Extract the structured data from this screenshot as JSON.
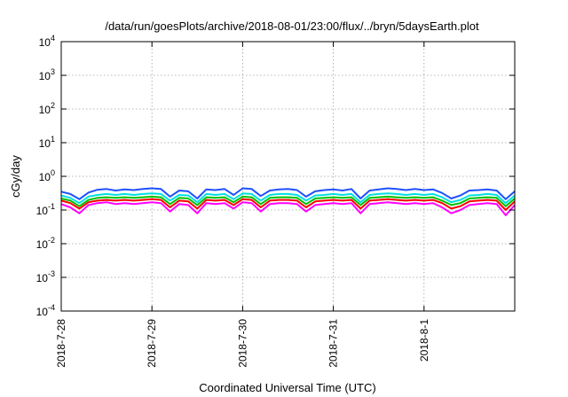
{
  "chart_data": {
    "type": "line",
    "title": "/data/run/goesPlots/archive/2018-08-01/23:00/flux/../bryn/5daysEarth.plot",
    "xlabel": "Coordinated Universal Time (UTC)",
    "ylabel": "cGy/day",
    "yscale": "log",
    "ylim": [
      0.0001,
      10000
    ],
    "xlim": [
      0,
      5
    ],
    "grid": true,
    "x_tick_labels": [
      "2018-7-28",
      "2018-7-29",
      "2018-7-30",
      "2018-7-31",
      "2018-8-1"
    ],
    "y_tick_labels": [
      {
        "base": "10",
        "exp": "-4"
      },
      {
        "base": "10",
        "exp": "-3"
      },
      {
        "base": "10",
        "exp": "-2"
      },
      {
        "base": "10",
        "exp": "-1"
      },
      {
        "base": "10",
        "exp": "0"
      },
      {
        "base": "10",
        "exp": "1"
      },
      {
        "base": "10",
        "exp": "2"
      },
      {
        "base": "10",
        "exp": "3"
      },
      {
        "base": "10",
        "exp": "4"
      }
    ],
    "x_unit_note": "days since 2018-7-28 00:00 UTC",
    "series": [
      {
        "color": "#ff00ff",
        "x": [
          0.0,
          0.1,
          0.2,
          0.3,
          0.4,
          0.5,
          0.6,
          0.7,
          0.8,
          0.9,
          1.0,
          1.1,
          1.2,
          1.3,
          1.4,
          1.5,
          1.6,
          1.7,
          1.8,
          1.9,
          2.0,
          2.1,
          2.2,
          2.3,
          2.4,
          2.5,
          2.6,
          2.7,
          2.8,
          2.9,
          3.0,
          3.1,
          3.2,
          3.3,
          3.4,
          3.5,
          3.6,
          3.7,
          3.8,
          3.9,
          4.0,
          4.1,
          4.2,
          4.3,
          4.4,
          4.5,
          4.6,
          4.7,
          4.8,
          4.9,
          5.0
        ],
        "values": [
          0.15,
          0.12,
          0.08,
          0.14,
          0.16,
          0.17,
          0.15,
          0.16,
          0.15,
          0.16,
          0.17,
          0.16,
          0.09,
          0.15,
          0.14,
          0.08,
          0.16,
          0.15,
          0.16,
          0.11,
          0.17,
          0.16,
          0.09,
          0.15,
          0.16,
          0.16,
          0.15,
          0.09,
          0.14,
          0.15,
          0.16,
          0.15,
          0.16,
          0.08,
          0.15,
          0.16,
          0.17,
          0.16,
          0.15,
          0.16,
          0.15,
          0.16,
          0.12,
          0.08,
          0.1,
          0.14,
          0.15,
          0.16,
          0.15,
          0.07,
          0.14
        ]
      },
      {
        "color": "#ff0000",
        "x": [
          0.0,
          0.1,
          0.2,
          0.3,
          0.4,
          0.5,
          0.6,
          0.7,
          0.8,
          0.9,
          1.0,
          1.1,
          1.2,
          1.3,
          1.4,
          1.5,
          1.6,
          1.7,
          1.8,
          1.9,
          2.0,
          2.1,
          2.2,
          2.3,
          2.4,
          2.5,
          2.6,
          2.7,
          2.8,
          2.9,
          3.0,
          3.1,
          3.2,
          3.3,
          3.4,
          3.5,
          3.6,
          3.7,
          3.8,
          3.9,
          4.0,
          4.1,
          4.2,
          4.3,
          4.4,
          4.5,
          4.6,
          4.7,
          4.8,
          4.9,
          5.0
        ],
        "values": [
          0.19,
          0.16,
          0.11,
          0.17,
          0.19,
          0.2,
          0.19,
          0.2,
          0.19,
          0.2,
          0.21,
          0.2,
          0.12,
          0.19,
          0.18,
          0.11,
          0.2,
          0.19,
          0.2,
          0.14,
          0.21,
          0.2,
          0.12,
          0.19,
          0.2,
          0.2,
          0.19,
          0.12,
          0.18,
          0.19,
          0.2,
          0.19,
          0.2,
          0.11,
          0.19,
          0.2,
          0.21,
          0.2,
          0.19,
          0.2,
          0.19,
          0.2,
          0.16,
          0.11,
          0.13,
          0.18,
          0.19,
          0.2,
          0.19,
          0.1,
          0.18
        ]
      },
      {
        "color": "#00c000",
        "x": [
          0.0,
          0.1,
          0.2,
          0.3,
          0.4,
          0.5,
          0.6,
          0.7,
          0.8,
          0.9,
          1.0,
          1.1,
          1.2,
          1.3,
          1.4,
          1.5,
          1.6,
          1.7,
          1.8,
          1.9,
          2.0,
          2.1,
          2.2,
          2.3,
          2.4,
          2.5,
          2.6,
          2.7,
          2.8,
          2.9,
          3.0,
          3.1,
          3.2,
          3.3,
          3.4,
          3.5,
          3.6,
          3.7,
          3.8,
          3.9,
          4.0,
          4.1,
          4.2,
          4.3,
          4.4,
          4.5,
          4.6,
          4.7,
          4.8,
          4.9,
          5.0
        ],
        "values": [
          0.22,
          0.19,
          0.13,
          0.2,
          0.23,
          0.24,
          0.23,
          0.24,
          0.23,
          0.24,
          0.25,
          0.24,
          0.15,
          0.23,
          0.22,
          0.14,
          0.24,
          0.23,
          0.24,
          0.17,
          0.25,
          0.24,
          0.15,
          0.23,
          0.24,
          0.24,
          0.23,
          0.15,
          0.22,
          0.23,
          0.24,
          0.23,
          0.24,
          0.14,
          0.23,
          0.24,
          0.25,
          0.24,
          0.23,
          0.24,
          0.23,
          0.24,
          0.19,
          0.14,
          0.16,
          0.22,
          0.23,
          0.24,
          0.23,
          0.13,
          0.22
        ]
      },
      {
        "color": "#00e0e0",
        "x": [
          0.0,
          0.1,
          0.2,
          0.3,
          0.4,
          0.5,
          0.6,
          0.7,
          0.8,
          0.9,
          1.0,
          1.1,
          1.2,
          1.3,
          1.4,
          1.5,
          1.6,
          1.7,
          1.8,
          1.9,
          2.0,
          2.1,
          2.2,
          2.3,
          2.4,
          2.5,
          2.6,
          2.7,
          2.8,
          2.9,
          3.0,
          3.1,
          3.2,
          3.3,
          3.4,
          3.5,
          3.6,
          3.7,
          3.8,
          3.9,
          4.0,
          4.1,
          4.2,
          4.3,
          4.4,
          4.5,
          4.6,
          4.7,
          4.8,
          4.9,
          5.0
        ],
        "values": [
          0.27,
          0.23,
          0.16,
          0.25,
          0.28,
          0.3,
          0.28,
          0.3,
          0.28,
          0.3,
          0.31,
          0.3,
          0.19,
          0.28,
          0.27,
          0.17,
          0.3,
          0.28,
          0.3,
          0.21,
          0.31,
          0.3,
          0.19,
          0.28,
          0.3,
          0.3,
          0.28,
          0.19,
          0.27,
          0.28,
          0.3,
          0.28,
          0.3,
          0.17,
          0.28,
          0.3,
          0.31,
          0.3,
          0.28,
          0.3,
          0.28,
          0.3,
          0.24,
          0.17,
          0.2,
          0.27,
          0.28,
          0.3,
          0.28,
          0.16,
          0.27
        ]
      },
      {
        "color": "#1e50ff",
        "x": [
          0.0,
          0.1,
          0.2,
          0.3,
          0.4,
          0.5,
          0.6,
          0.7,
          0.8,
          0.9,
          1.0,
          1.1,
          1.2,
          1.3,
          1.4,
          1.5,
          1.6,
          1.7,
          1.8,
          1.9,
          2.0,
          2.1,
          2.2,
          2.3,
          2.4,
          2.5,
          2.6,
          2.7,
          2.8,
          2.9,
          3.0,
          3.1,
          3.2,
          3.3,
          3.4,
          3.5,
          3.6,
          3.7,
          3.8,
          3.9,
          4.0,
          4.1,
          4.2,
          4.3,
          4.4,
          4.5,
          4.6,
          4.7,
          4.8,
          4.9,
          5.0
        ],
        "values": [
          0.35,
          0.3,
          0.21,
          0.33,
          0.4,
          0.42,
          0.38,
          0.41,
          0.39,
          0.42,
          0.44,
          0.42,
          0.25,
          0.38,
          0.36,
          0.22,
          0.41,
          0.39,
          0.42,
          0.28,
          0.44,
          0.42,
          0.26,
          0.38,
          0.41,
          0.42,
          0.39,
          0.25,
          0.36,
          0.39,
          0.41,
          0.38,
          0.42,
          0.22,
          0.38,
          0.41,
          0.44,
          0.42,
          0.39,
          0.42,
          0.39,
          0.41,
          0.32,
          0.22,
          0.27,
          0.38,
          0.39,
          0.41,
          0.38,
          0.21,
          0.36
        ]
      }
    ]
  }
}
